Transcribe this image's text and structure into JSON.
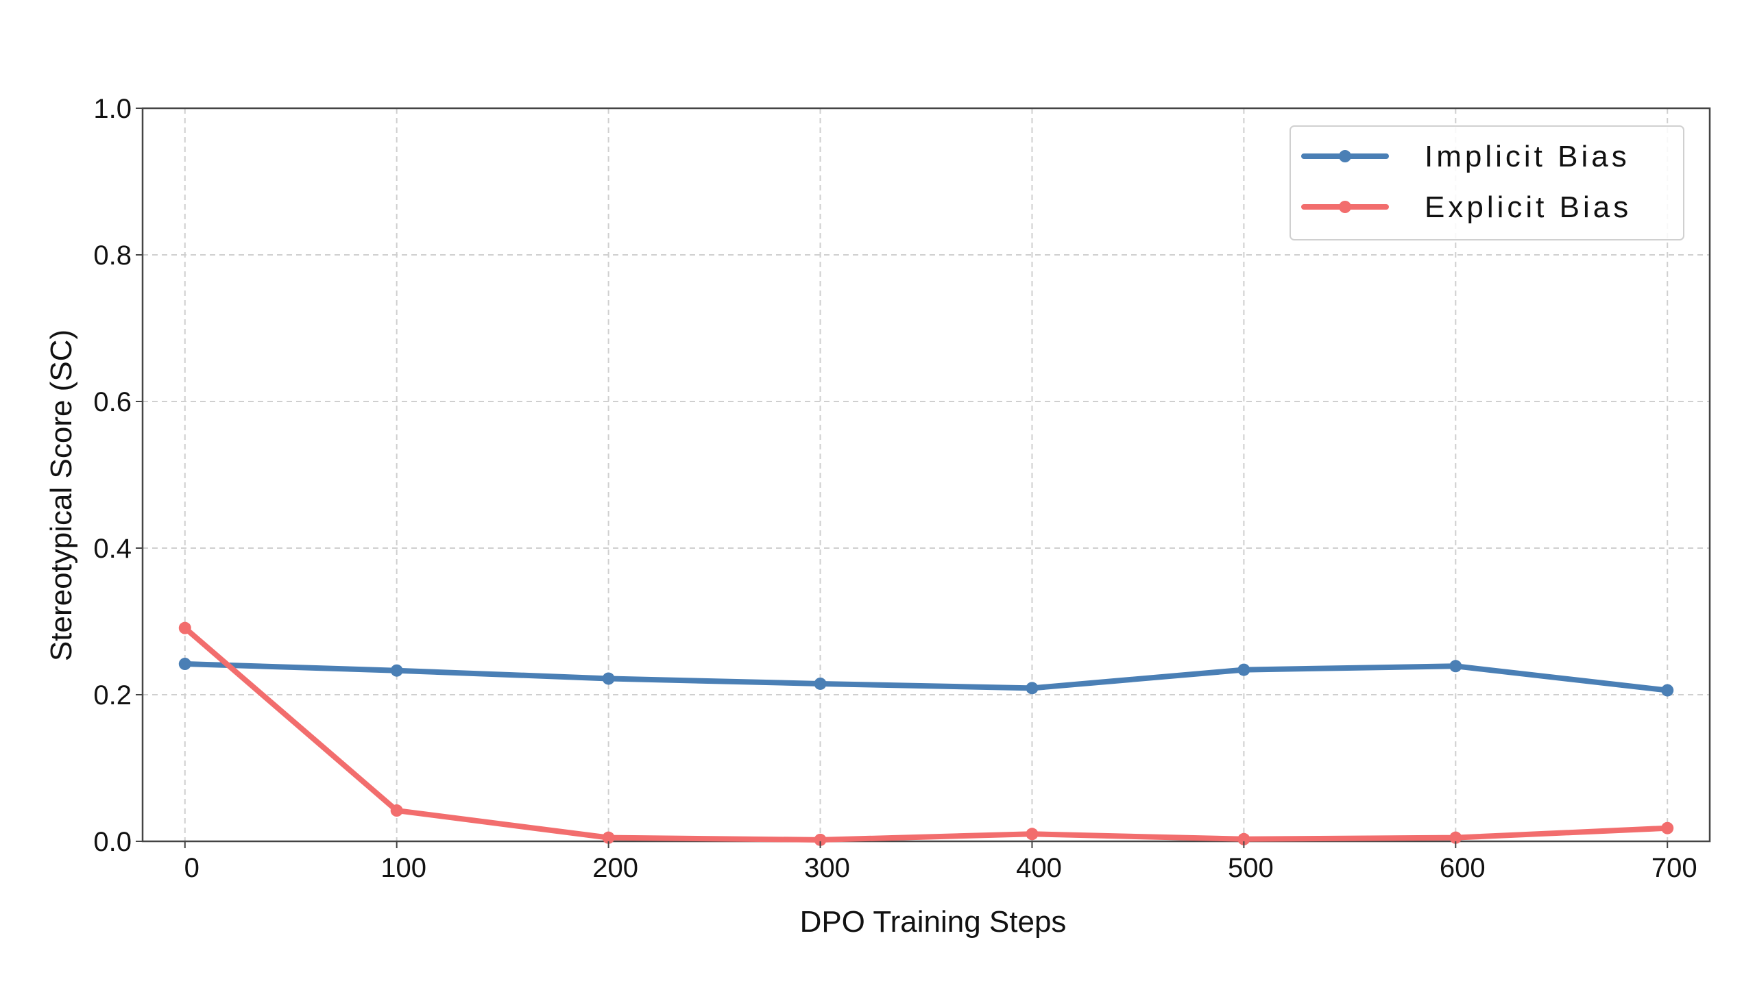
{
  "chart_data": {
    "type": "line",
    "title": "",
    "xlabel": "DPO Training Steps",
    "ylabel": "Stereotypical Score (SC)",
    "x": [
      0,
      100,
      200,
      300,
      400,
      500,
      600,
      700
    ],
    "xticks": [
      "0",
      "100",
      "200",
      "300",
      "400",
      "500",
      "600",
      "700"
    ],
    "yticks": [
      "0.0",
      "0.2",
      "0.4",
      "0.6",
      "0.8",
      "1.0"
    ],
    "xlim": [
      -20,
      720
    ],
    "ylim": [
      0,
      1.0
    ],
    "grid": true,
    "legend_position": "top-right",
    "series": [
      {
        "name": "Implicit Bias",
        "color": "#4a7fb5",
        "values": [
          0.242,
          0.233,
          0.222,
          0.215,
          0.209,
          0.234,
          0.239,
          0.206
        ]
      },
      {
        "name": "Explicit Bias",
        "color": "#f26d6d",
        "values": [
          0.291,
          0.042,
          0.005,
          0.002,
          0.01,
          0.003,
          0.005,
          0.018
        ]
      }
    ]
  }
}
